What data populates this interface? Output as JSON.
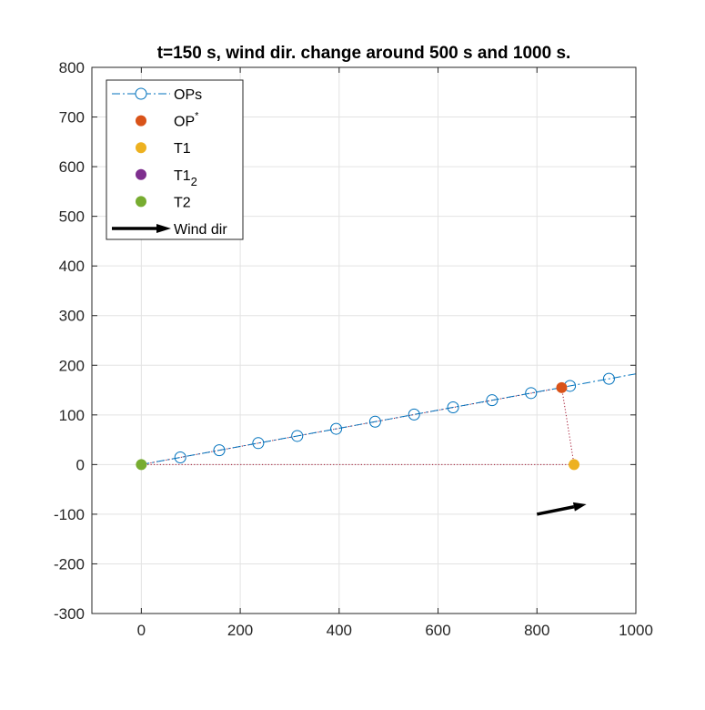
{
  "chart_data": {
    "type": "scatter",
    "title": "t=150 s, wind dir. change around 500 s and 1000 s.",
    "xlabel": "",
    "ylabel": "",
    "xlim": [
      -100,
      1000
    ],
    "ylim": [
      -300,
      800
    ],
    "x_ticks": [
      0,
      200,
      400,
      600,
      800,
      1000
    ],
    "y_ticks": [
      -300,
      -200,
      -100,
      0,
      100,
      200,
      300,
      400,
      500,
      600,
      700,
      800
    ],
    "grid": true,
    "legend_position": "top-left",
    "colors": {
      "ops": "#0072BD",
      "op_star": "#D95319",
      "t1": "#EDB120",
      "t1_2": "#7E2F8E",
      "t2": "#77AC30",
      "wind": "#000000",
      "link": "#A2142F"
    },
    "series": [
      {
        "name": "OPs",
        "marker": "open-circle",
        "line": "dash-dot",
        "x": [
          0,
          78.8,
          157.6,
          236.4,
          315.2,
          394,
          472.8,
          551.6,
          630.4,
          709.2,
          788,
          866.8,
          945.6
        ],
        "y": [
          0,
          14.4,
          28.8,
          43.2,
          57.6,
          72,
          86.4,
          100.8,
          115.2,
          129.6,
          144,
          158.4,
          172.8
        ]
      },
      {
        "name": "OP*",
        "marker": "filled-circle",
        "x": [
          850
        ],
        "y": [
          155
        ]
      },
      {
        "name": "T1",
        "marker": "filled-circle",
        "x": [
          875
        ],
        "y": [
          0
        ]
      },
      {
        "name": "T1_2",
        "marker": "filled-circle",
        "x": [],
        "y": []
      },
      {
        "name": "T2",
        "marker": "filled-circle",
        "x": [
          0
        ],
        "y": [
          0
        ]
      },
      {
        "name": "Wind dir",
        "marker": "arrow",
        "x": [
          800,
          900
        ],
        "y": [
          -100,
          -80
        ]
      }
    ],
    "dotted_links": [
      {
        "x": [
          0,
          850
        ],
        "y": [
          0,
          155
        ]
      },
      {
        "x": [
          850,
          875
        ],
        "y": [
          155,
          0
        ]
      },
      {
        "x": [
          0,
          875
        ],
        "y": [
          0,
          0
        ]
      }
    ],
    "legend": [
      {
        "key": "ops",
        "label": "OPs",
        "sup": "",
        "sub": ""
      },
      {
        "key": "op_star",
        "label": "OP",
        "sup": "*",
        "sub": ""
      },
      {
        "key": "t1",
        "label": "T1",
        "sup": "",
        "sub": ""
      },
      {
        "key": "t1_2",
        "label": "T1",
        "sup": "",
        "sub": "2"
      },
      {
        "key": "t2",
        "label": "T2",
        "sup": "",
        "sub": ""
      },
      {
        "key": "wind",
        "label": "Wind dir",
        "sup": "",
        "sub": ""
      }
    ]
  }
}
